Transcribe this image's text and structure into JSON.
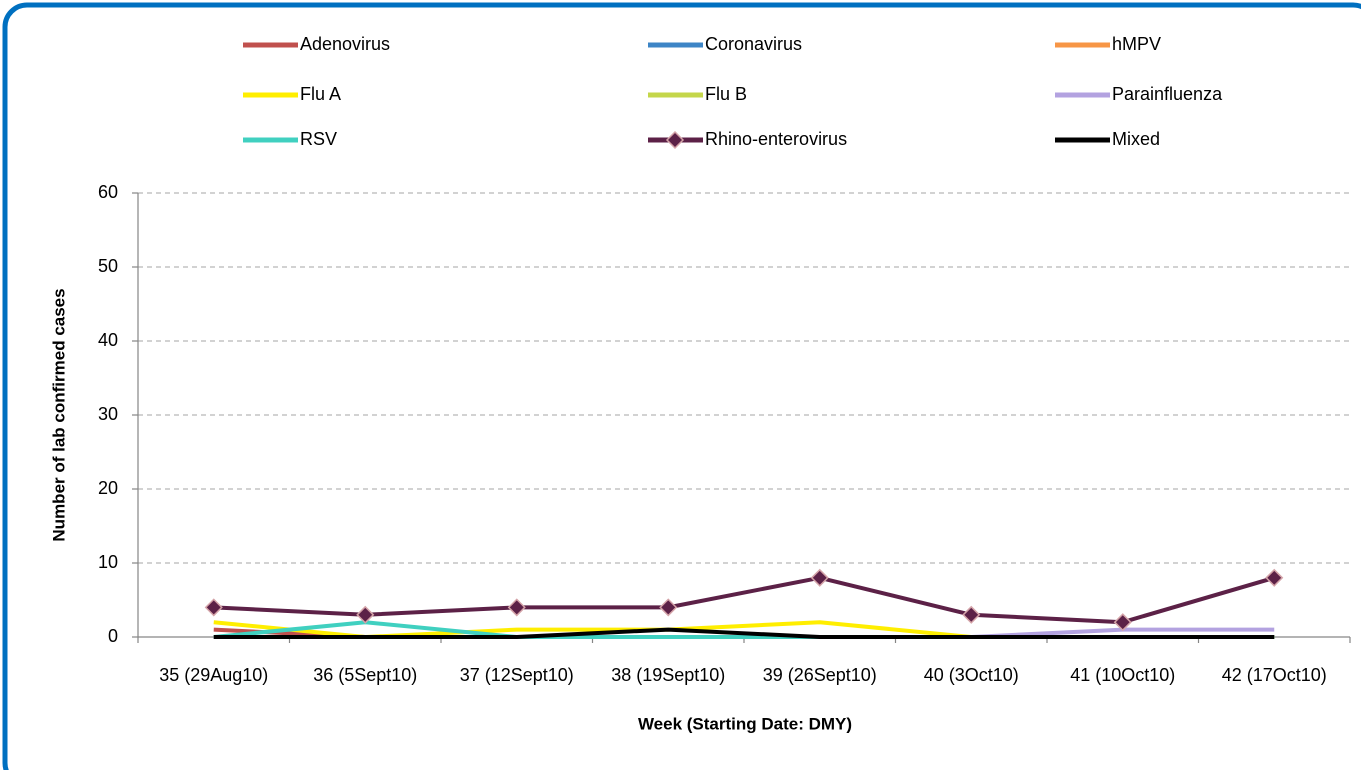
{
  "chart_data": {
    "type": "line",
    "xlabel": "Week (Starting Date: DMY)",
    "ylabel": "Number of lab confirmed cases",
    "categories": [
      "35 (29Aug10)",
      "36 (5Sept10)",
      "37 (12Sept10)",
      "38 (19Sept10)",
      "39 (26Sept10)",
      "40 (3Oct10)",
      "41 (10Oct10)",
      "42 (17Oct10)"
    ],
    "ylim": [
      0,
      60
    ],
    "yticks": [
      0,
      10,
      20,
      30,
      40,
      50,
      60
    ],
    "grid": true,
    "series": [
      {
        "name": "Adenovirus",
        "color": "#c0504d",
        "values": [
          1,
          0,
          0,
          0,
          0,
          0,
          0,
          0
        ]
      },
      {
        "name": "Coronavirus",
        "color": "#3d85c6",
        "values": [
          0,
          0,
          0,
          0,
          0,
          0,
          0,
          0
        ]
      },
      {
        "name": "hMPV",
        "color": "#f79646",
        "values": [
          0,
          0,
          0,
          0,
          0,
          0,
          0,
          0
        ]
      },
      {
        "name": "Flu A",
        "color": "#ffee00",
        "values": [
          2,
          0,
          1,
          1,
          2,
          0,
          0,
          0
        ]
      },
      {
        "name": "Flu B",
        "color": "#c4d64a",
        "values": [
          0,
          0,
          0,
          0,
          0,
          0,
          0,
          0
        ]
      },
      {
        "name": "Parainfluenza",
        "color": "#b3a2e0",
        "values": [
          0,
          0,
          0,
          0,
          0,
          0,
          1,
          1
        ]
      },
      {
        "name": "RSV",
        "color": "#40d0c0",
        "values": [
          0,
          2,
          0,
          0,
          0,
          0,
          0,
          0
        ]
      },
      {
        "name": "Rhino-enterovirus",
        "color": "#5c2147",
        "marker": "diamond",
        "values": [
          4,
          3,
          4,
          4,
          8,
          3,
          2,
          8
        ]
      },
      {
        "name": "Mixed",
        "color": "#000000",
        "values": [
          0,
          0,
          0,
          1,
          0,
          0,
          0,
          0
        ]
      }
    ]
  }
}
